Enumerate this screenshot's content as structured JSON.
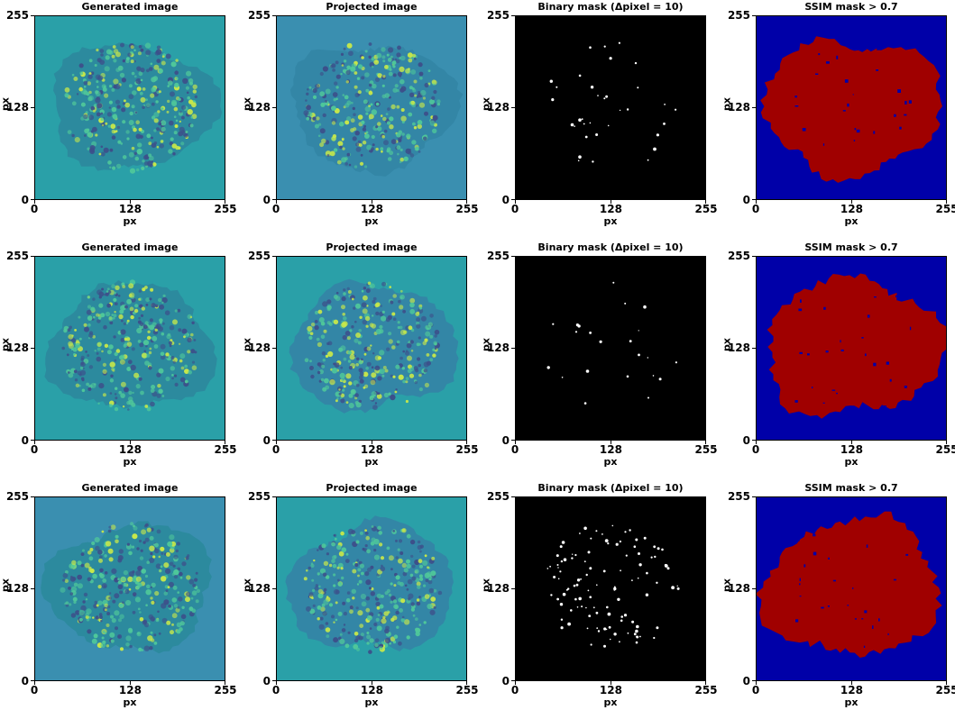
{
  "axes": {
    "xlabel": "px",
    "ylabel": "px",
    "ticks": [
      "0",
      "128",
      "255"
    ],
    "tick_values": [
      0,
      128,
      255
    ]
  },
  "rows": [
    {
      "panels": [
        {
          "type": "generated",
          "title": "Generated image",
          "bg": "#2aa0a8"
        },
        {
          "type": "projected",
          "title": "Projected image",
          "bg": "#3a8fb0"
        },
        {
          "type": "binary",
          "title": "Binary mask (Δpixel = 10)",
          "bg": "#000000"
        },
        {
          "type": "ssim",
          "title": "SSIM mask > 0.7",
          "bg": "#0000a8",
          "fg": "#a00000"
        }
      ]
    },
    {
      "panels": [
        {
          "type": "generated",
          "title": "Generated image",
          "bg": "#2aa0a8"
        },
        {
          "type": "projected",
          "title": "Projected image",
          "bg": "#2aa0a8"
        },
        {
          "type": "binary",
          "title": "Binary mask (Δpixel = 10)",
          "bg": "#000000"
        },
        {
          "type": "ssim",
          "title": "SSIM mask > 0.7",
          "bg": "#0000a8",
          "fg": "#a00000"
        }
      ]
    },
    {
      "panels": [
        {
          "type": "generated",
          "title": "Generated image",
          "bg": "#3a8fb0"
        },
        {
          "type": "projected",
          "title": "Projected image",
          "bg": "#2aa0a8"
        },
        {
          "type": "binary",
          "title": "Binary mask (Δpixel = 10)",
          "bg": "#000000"
        },
        {
          "type": "ssim",
          "title": "SSIM mask > 0.7",
          "bg": "#0000a8",
          "fg": "#a00000"
        }
      ]
    }
  ]
}
